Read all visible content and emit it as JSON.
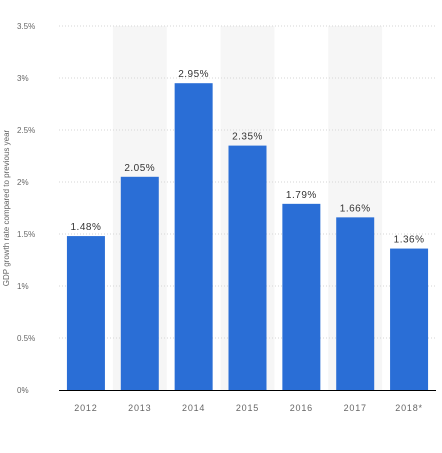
{
  "chart_data": {
    "type": "bar",
    "ylabel": "GDP growth rate compared to previous year",
    "categories": [
      "2012",
      "2013",
      "2014",
      "2015",
      "2016",
      "2017",
      "2018*"
    ],
    "values": [
      1.48,
      2.05,
      2.95,
      2.35,
      1.79,
      1.66,
      1.36
    ],
    "value_labels": [
      "1.48%",
      "2.05%",
      "2.95%",
      "2.35%",
      "1.79%",
      "1.66%",
      "1.36%"
    ],
    "yticks": [
      0,
      0.5,
      1,
      1.5,
      2,
      2.5,
      3,
      3.5
    ],
    "ytick_labels": [
      "0%",
      "0.5%",
      "1%",
      "1.5%",
      "2%",
      "2.5%",
      "3%",
      "3.5%"
    ],
    "ylim": [
      0,
      3.5
    ],
    "grid": true,
    "legend": "none",
    "colors": {
      "bar": "#2a6ed6",
      "band": "#f6f6f6",
      "grid": "#d6d6d6",
      "axis": "#000000",
      "text": "#333333",
      "tick_text": "#666666"
    }
  }
}
